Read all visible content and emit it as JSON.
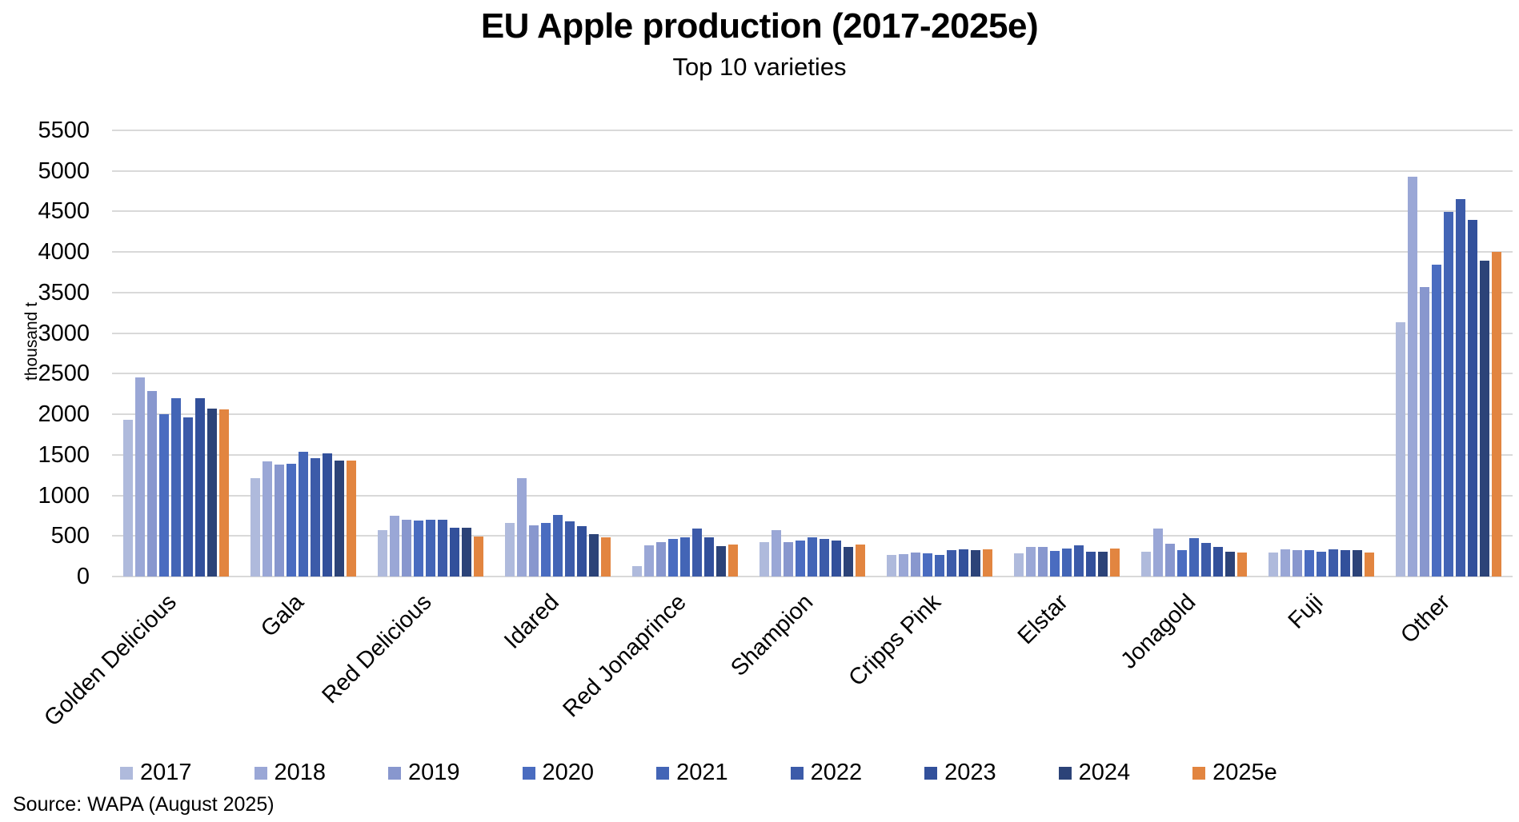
{
  "source": "Source: WAPA (August 2025)",
  "chart_data": {
    "type": "bar",
    "title": "EU Apple production (2017-2025e)",
    "subtitle": "Top 10 varieties",
    "ylabel": "thousand t",
    "xlabel": "",
    "ylim": [
      0,
      5500
    ],
    "yticks": [
      0,
      500,
      1000,
      1500,
      2000,
      2500,
      3000,
      3500,
      4000,
      4500,
      5000,
      5500
    ],
    "grid": true,
    "legend_position": "bottom",
    "categories": [
      "Golden Delicious",
      "Gala",
      "Red Delicious",
      "Idared",
      "Red Jonaprince",
      "Shampion",
      "Cripps Pink",
      "Elstar",
      "Jonagold",
      "Fuji",
      "Other"
    ],
    "series": [
      {
        "name": "2017",
        "color": "#AFBADC",
        "values": [
          1930,
          1210,
          570,
          660,
          130,
          425,
          265,
          285,
          310,
          295,
          3130
        ]
      },
      {
        "name": "2018",
        "color": "#9AA7D6",
        "values": [
          2450,
          1420,
          750,
          1210,
          380,
          570,
          280,
          370,
          590,
          335,
          4930
        ]
      },
      {
        "name": "2019",
        "color": "#8897CE",
        "values": [
          2290,
          1385,
          700,
          630,
          425,
          420,
          300,
          370,
          405,
          325,
          3570
        ]
      },
      {
        "name": "2020",
        "color": "#4A6CC0",
        "values": [
          2000,
          1390,
          690,
          660,
          460,
          440,
          285,
          320,
          325,
          325,
          3840
        ]
      },
      {
        "name": "2021",
        "color": "#4365B6",
        "values": [
          2200,
          1535,
          700,
          760,
          480,
          480,
          270,
          345,
          475,
          305,
          4500
        ]
      },
      {
        "name": "2022",
        "color": "#3C5BA9",
        "values": [
          1960,
          1460,
          700,
          680,
          590,
          465,
          325,
          380,
          410,
          335,
          4650
        ]
      },
      {
        "name": "2023",
        "color": "#32509B",
        "values": [
          2200,
          1520,
          600,
          620,
          485,
          440,
          335,
          310,
          370,
          325,
          4400
        ]
      },
      {
        "name": "2024",
        "color": "#2C4378",
        "values": [
          2070,
          1430,
          600,
          520,
          375,
          370,
          325,
          310,
          305,
          330,
          3890
        ]
      },
      {
        "name": "2025e",
        "color": "#E28540",
        "values": [
          2060,
          1430,
          490,
          480,
          395,
          395,
          340,
          345,
          295,
          295,
          4000
        ]
      }
    ]
  }
}
